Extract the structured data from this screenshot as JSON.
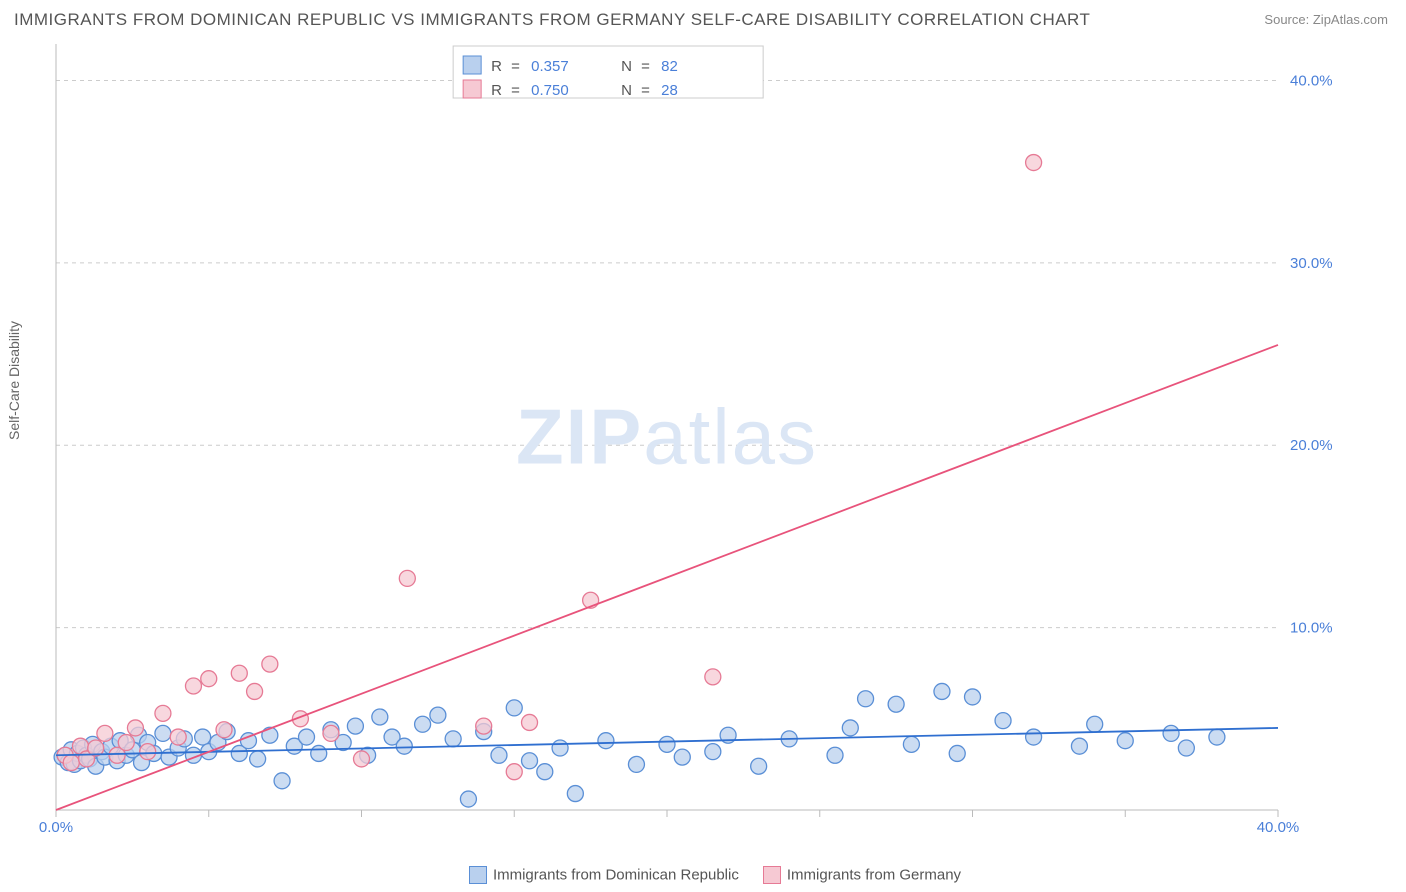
{
  "title": "IMMIGRANTS FROM DOMINICAN REPUBLIC VS IMMIGRANTS FROM GERMANY SELF-CARE DISABILITY CORRELATION CHART",
  "source_label": "Source:",
  "source_value": "ZipAtlas.com",
  "ylabel": "Self-Care Disability",
  "watermark_a": "ZIP",
  "watermark_b": "atlas",
  "chart": {
    "type": "scatter",
    "xlim": [
      0,
      40
    ],
    "ylim": [
      0,
      42
    ],
    "xticks": [
      0,
      40
    ],
    "xtick_labels": [
      "0.0%",
      "40.0%"
    ],
    "xticks_minor": [
      5,
      10,
      15,
      20,
      25,
      30,
      35
    ],
    "yticks": [
      10,
      20,
      30,
      40
    ],
    "ytick_labels": [
      "10.0%",
      "20.0%",
      "30.0%",
      "40.0%"
    ],
    "background_color": "#ffffff",
    "grid_color": "#cccccc",
    "marker_radius": 8,
    "marker_stroke_width": 1.3,
    "trend_line_width": 1.8,
    "series": [
      {
        "name": "Immigrants from Dominican Republic",
        "fill": "#b9d0ee",
        "stroke": "#5a8fd6",
        "r_value": "0.357",
        "n_value": "82",
        "trend": {
          "x1": 0,
          "y1": 3.0,
          "x2": 40,
          "y2": 4.5,
          "color": "#2f6fd0"
        },
        "points": [
          [
            0.2,
            2.9
          ],
          [
            0.3,
            3.0
          ],
          [
            0.4,
            2.6
          ],
          [
            0.5,
            3.3
          ],
          [
            0.6,
            2.5
          ],
          [
            0.7,
            3.1
          ],
          [
            0.8,
            2.7
          ],
          [
            0.9,
            3.4
          ],
          [
            1.0,
            3.0
          ],
          [
            1.1,
            2.8
          ],
          [
            1.2,
            3.6
          ],
          [
            1.3,
            2.4
          ],
          [
            1.5,
            3.2
          ],
          [
            1.6,
            2.9
          ],
          [
            1.8,
            3.5
          ],
          [
            2.0,
            2.7
          ],
          [
            2.1,
            3.8
          ],
          [
            2.3,
            3.0
          ],
          [
            2.5,
            3.3
          ],
          [
            2.7,
            4.1
          ],
          [
            2.8,
            2.6
          ],
          [
            3.0,
            3.7
          ],
          [
            3.2,
            3.1
          ],
          [
            3.5,
            4.2
          ],
          [
            3.7,
            2.9
          ],
          [
            4.0,
            3.4
          ],
          [
            4.2,
            3.9
          ],
          [
            4.5,
            3.0
          ],
          [
            4.8,
            4.0
          ],
          [
            5.0,
            3.2
          ],
          [
            5.3,
            3.7
          ],
          [
            5.6,
            4.3
          ],
          [
            6.0,
            3.1
          ],
          [
            6.3,
            3.8
          ],
          [
            6.6,
            2.8
          ],
          [
            7.0,
            4.1
          ],
          [
            7.4,
            1.6
          ],
          [
            7.8,
            3.5
          ],
          [
            8.2,
            4.0
          ],
          [
            8.6,
            3.1
          ],
          [
            9.0,
            4.4
          ],
          [
            9.4,
            3.7
          ],
          [
            9.8,
            4.6
          ],
          [
            10.2,
            3.0
          ],
          [
            10.6,
            5.1
          ],
          [
            11.0,
            4.0
          ],
          [
            11.4,
            3.5
          ],
          [
            12.0,
            4.7
          ],
          [
            12.5,
            5.2
          ],
          [
            13.0,
            3.9
          ],
          [
            13.5,
            0.6
          ],
          [
            14.0,
            4.3
          ],
          [
            14.5,
            3.0
          ],
          [
            15.0,
            5.6
          ],
          [
            15.5,
            2.7
          ],
          [
            16.0,
            2.1
          ],
          [
            16.5,
            3.4
          ],
          [
            17.0,
            0.9
          ],
          [
            18.0,
            3.8
          ],
          [
            19.0,
            2.5
          ],
          [
            20.0,
            3.6
          ],
          [
            20.5,
            2.9
          ],
          [
            21.5,
            3.2
          ],
          [
            22.0,
            4.1
          ],
          [
            23.0,
            2.4
          ],
          [
            24.0,
            3.9
          ],
          [
            25.5,
            3.0
          ],
          [
            26.0,
            4.5
          ],
          [
            26.5,
            6.1
          ],
          [
            27.5,
            5.8
          ],
          [
            28.0,
            3.6
          ],
          [
            29.0,
            6.5
          ],
          [
            29.5,
            3.1
          ],
          [
            30.0,
            6.2
          ],
          [
            31.0,
            4.9
          ],
          [
            32.0,
            4.0
          ],
          [
            33.5,
            3.5
          ],
          [
            34.0,
            4.7
          ],
          [
            35.0,
            3.8
          ],
          [
            36.5,
            4.2
          ],
          [
            37.0,
            3.4
          ],
          [
            38.0,
            4.0
          ]
        ]
      },
      {
        "name": "Immigrants from Germany",
        "fill": "#f6c9d3",
        "stroke": "#e67a95",
        "r_value": "0.750",
        "n_value": "28",
        "trend": {
          "x1": 0,
          "y1": 0.0,
          "x2": 40,
          "y2": 25.5,
          "color": "#e8537b"
        },
        "points": [
          [
            0.3,
            3.0
          ],
          [
            0.5,
            2.6
          ],
          [
            0.8,
            3.5
          ],
          [
            1.0,
            2.8
          ],
          [
            1.3,
            3.4
          ],
          [
            1.6,
            4.2
          ],
          [
            2.0,
            3.0
          ],
          [
            2.3,
            3.7
          ],
          [
            2.6,
            4.5
          ],
          [
            3.0,
            3.2
          ],
          [
            3.5,
            5.3
          ],
          [
            4.0,
            4.0
          ],
          [
            4.5,
            6.8
          ],
          [
            5.0,
            7.2
          ],
          [
            5.5,
            4.4
          ],
          [
            6.0,
            7.5
          ],
          [
            6.5,
            6.5
          ],
          [
            7.0,
            8.0
          ],
          [
            8.0,
            5.0
          ],
          [
            9.0,
            4.2
          ],
          [
            10.0,
            2.8
          ],
          [
            11.5,
            12.7
          ],
          [
            14.0,
            4.6
          ],
          [
            15.0,
            2.1
          ],
          [
            15.5,
            4.8
          ],
          [
            17.5,
            11.5
          ],
          [
            21.5,
            7.3
          ],
          [
            32.0,
            35.5
          ]
        ]
      }
    ]
  },
  "legend_top": {
    "r_label": "R",
    "n_label": "N",
    "eq": "="
  },
  "bottom_legend": {
    "items": [
      {
        "label": "Immigrants from Dominican Republic",
        "fill": "#b9d0ee",
        "stroke": "#5a8fd6"
      },
      {
        "label": "Immigrants from Germany",
        "fill": "#f6c9d3",
        "stroke": "#e67a95"
      }
    ]
  }
}
